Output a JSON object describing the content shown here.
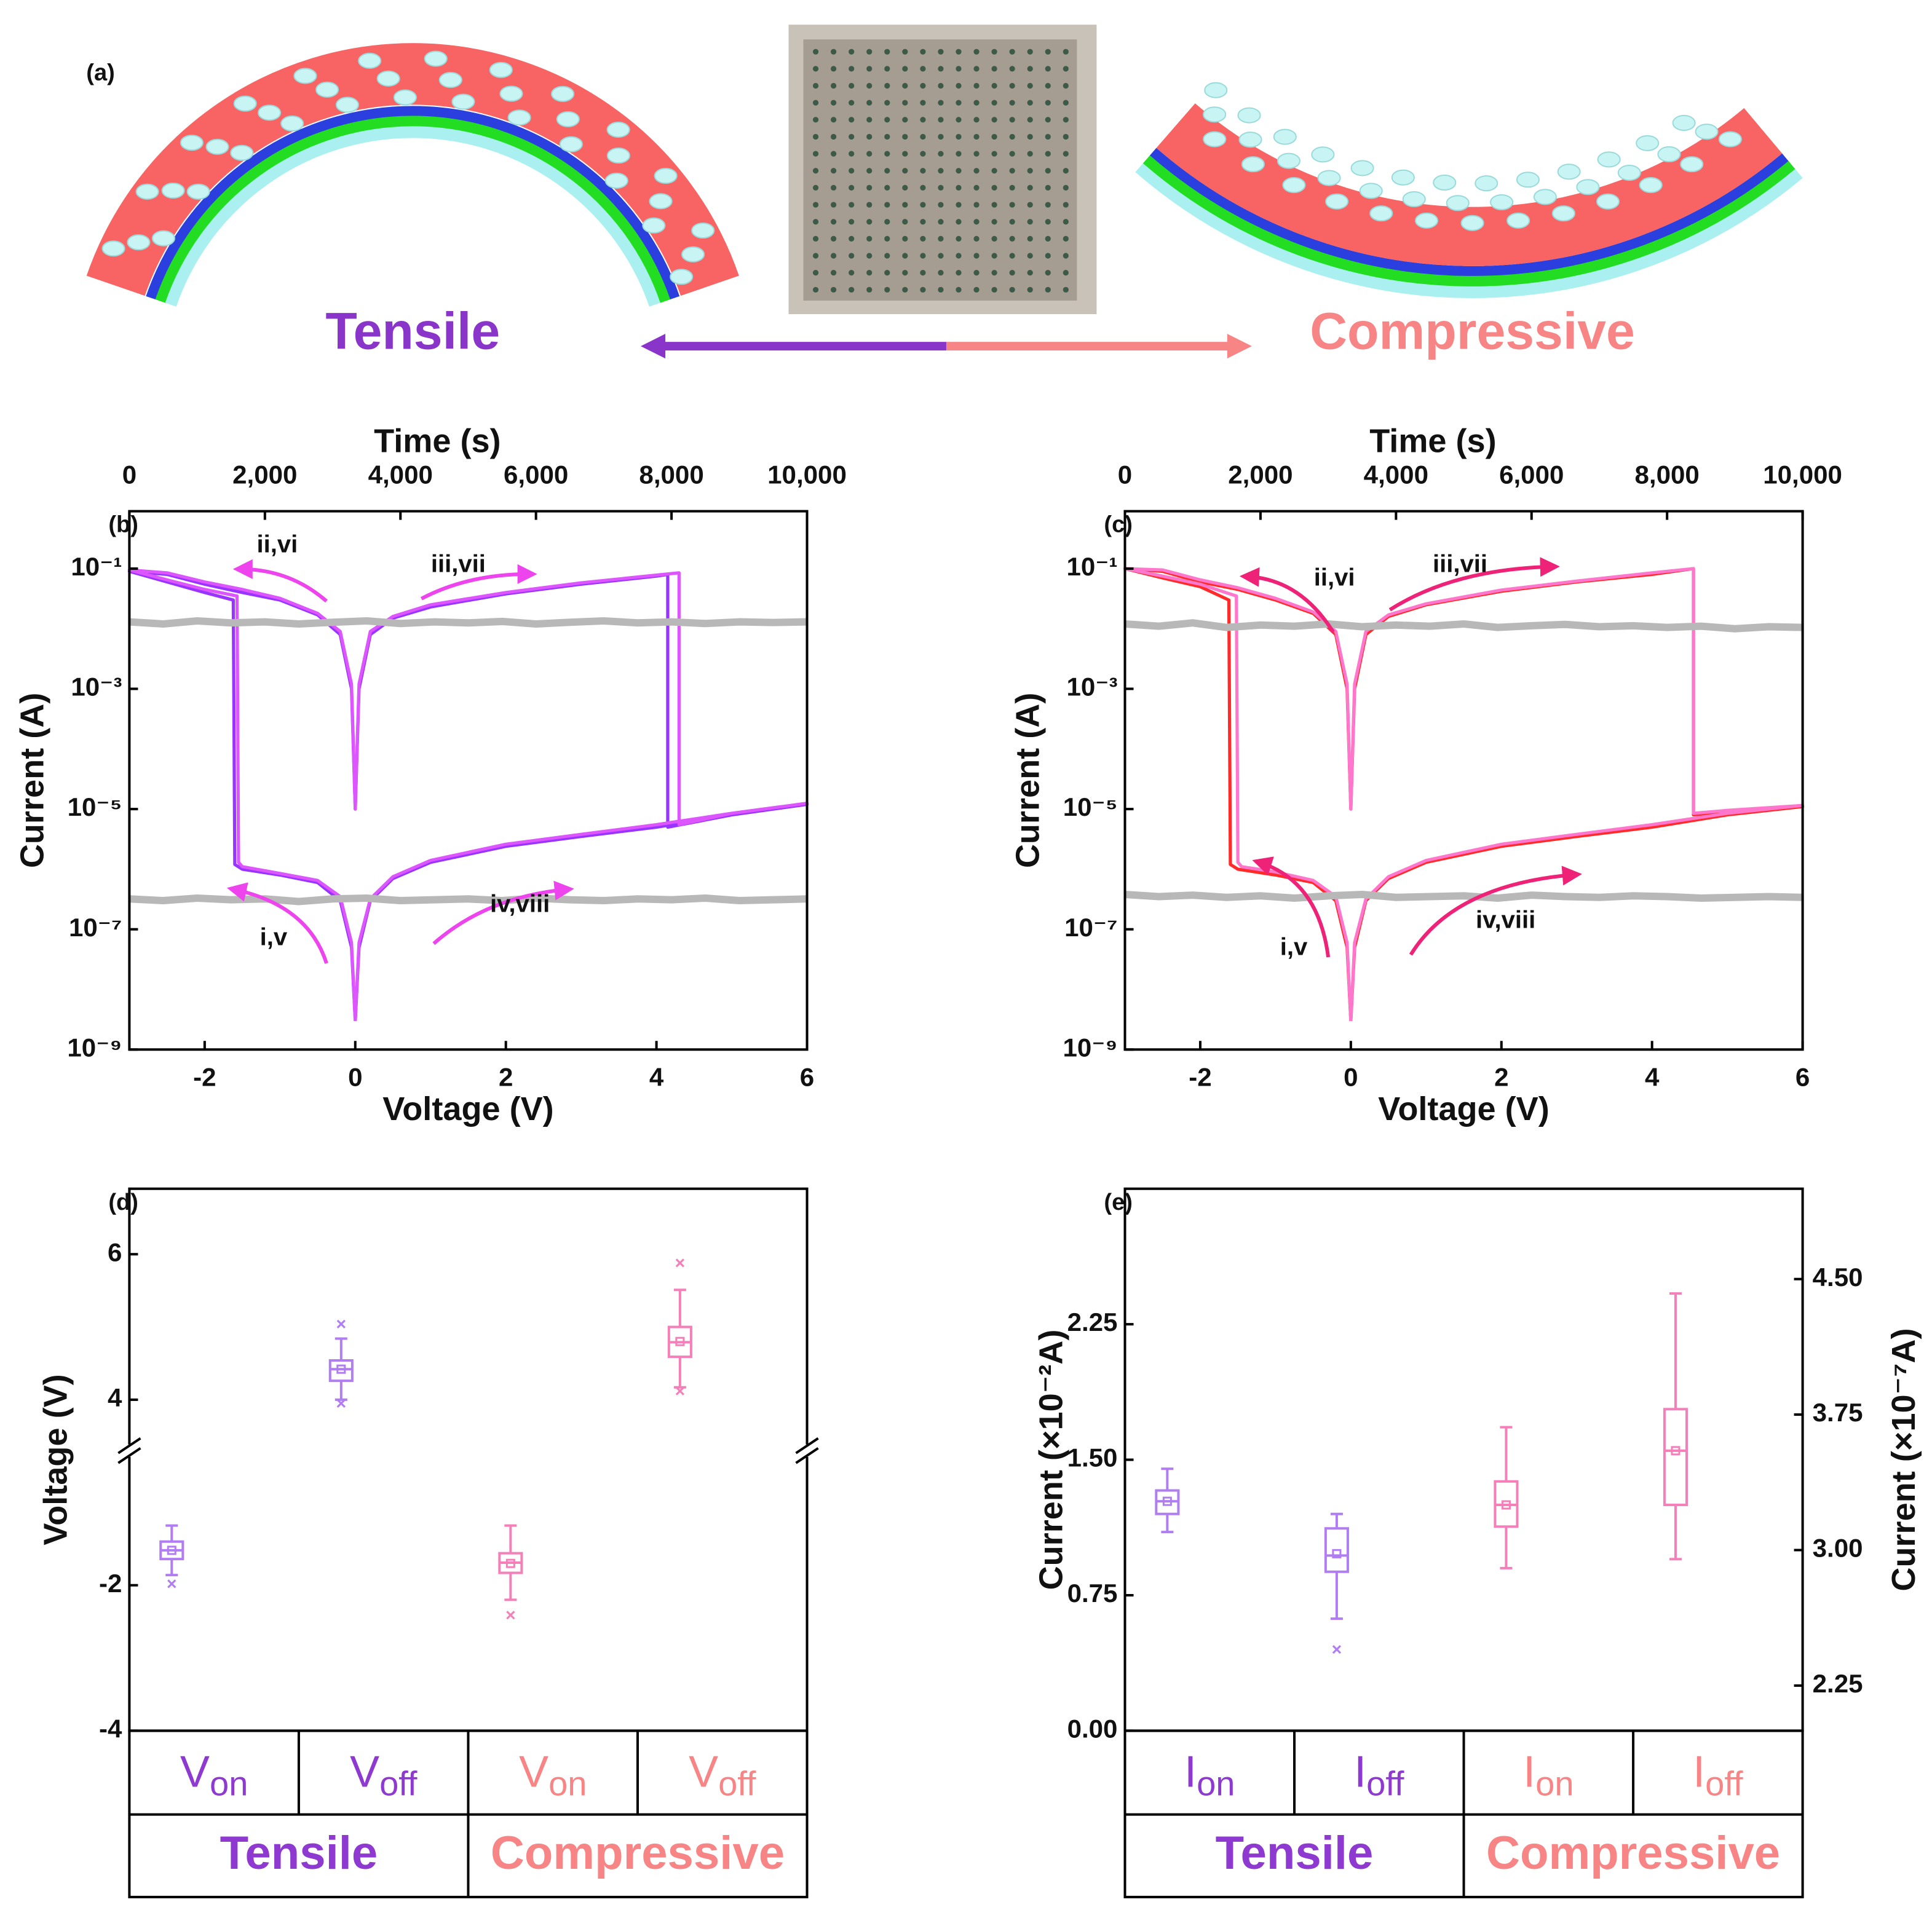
{
  "illustration": {
    "label": "(a)",
    "left_label": "Tensile",
    "right_label": "Compressive",
    "left_color": "#8a35c9",
    "right_color": "#f78585"
  },
  "chart_data": [
    {
      "type": "line",
      "panel_label": "(b)",
      "x_label": "Voltage (V)",
      "y_label": "Current (A)",
      "x2_label": "Time (s)",
      "xlim": [
        -3,
        6
      ],
      "xticks": [
        -2,
        0,
        2,
        4,
        6
      ],
      "x2lim": [
        0,
        10000
      ],
      "x2ticks": [
        0,
        {
          "value": 2000,
          "label": "2,000"
        },
        {
          "value": 4000,
          "label": "4,000"
        },
        {
          "value": 6000,
          "label": "6,000"
        },
        {
          "value": 8000,
          "label": "8,000"
        },
        {
          "value": 10000,
          "label": "10,000"
        }
      ],
      "ylim": [
        1e-09,
        0.9
      ],
      "log_y": true,
      "yticks": [
        {
          "value": 1e-09,
          "label": "10⁻⁹"
        },
        {
          "value": 1e-07,
          "label": "10⁻⁷"
        },
        {
          "value": 1e-05,
          "label": "10⁻⁵"
        },
        {
          "value": 0.001,
          "label": "10⁻³"
        },
        {
          "value": 0.1,
          "label": "10⁻¹"
        }
      ],
      "annotations": [
        "ii,vi",
        "iii,vii",
        "i,v",
        "iv,viii"
      ],
      "arrow_color": "#ee44ee",
      "series": [
        {
          "color": "#9933ff",
          "x": [
            0,
            -0.05,
            -0.2,
            -0.5,
            -1,
            -1.5,
            -1.6,
            -1.62,
            -2,
            -2.5,
            -3,
            -2.5,
            -2,
            -1.5,
            -1,
            -0.5,
            -0.2,
            -0.05,
            0,
            0.05,
            0.2,
            0.5,
            1,
            2,
            3,
            4,
            4.15,
            4.15,
            5,
            6,
            5,
            4,
            3,
            2,
            1,
            0.5,
            0.2,
            0.05,
            0
          ],
          "values": [
            3e-09,
            5e-08,
            3e-07,
            6e-07,
            8e-07,
            1e-06,
            1.2e-06,
            0.03,
            0.04,
            0.06,
            0.09,
            0.08,
            0.055,
            0.04,
            0.03,
            0.017,
            0.008,
            0.001,
            1e-05,
            0.001,
            0.008,
            0.015,
            0.023,
            0.038,
            0.055,
            0.075,
            0.08,
            5e-06,
            8e-06,
            1.2e-05,
            8e-06,
            5e-06,
            3.5e-06,
            2.4e-06,
            1.3e-06,
            7e-07,
            3e-07,
            5e-08,
            3e-09
          ]
        },
        {
          "color": "#dd55ff",
          "x": [
            0,
            -0.05,
            -0.2,
            -0.5,
            -1,
            -1.5,
            -1.55,
            -1.57,
            -2,
            -2.5,
            -3,
            -2.5,
            -2,
            -1.5,
            -1,
            -0.5,
            -0.2,
            -0.05,
            0,
            0.05,
            0.2,
            0.5,
            1,
            2,
            3,
            4,
            4.3,
            4.3,
            5,
            6,
            5,
            4,
            3,
            2,
            1,
            0.5,
            0.2,
            0.05,
            0
          ],
          "values": [
            3e-09,
            6e-08,
            3.5e-07,
            6.5e-07,
            8.5e-07,
            1.1e-06,
            1.3e-06,
            0.035,
            0.045,
            0.065,
            0.095,
            0.085,
            0.06,
            0.045,
            0.032,
            0.018,
            0.009,
            0.0012,
            1e-05,
            0.0012,
            0.009,
            0.016,
            0.025,
            0.04,
            0.058,
            0.078,
            0.085,
            5.5e-06,
            8.5e-06,
            1.25e-05,
            8.5e-06,
            5.5e-06,
            3.8e-06,
            2.6e-06,
            1.4e-06,
            7.5e-07,
            3.2e-07,
            6e-08,
            3e-09
          ]
        },
        {
          "color": "#b8b8b8",
          "axis": "x2",
          "x": [
            0,
            500,
            1000,
            1500,
            2000,
            2500,
            3000,
            3500,
            4000,
            4500,
            5000,
            5500,
            6000,
            6500,
            7000,
            7500,
            8000,
            8500,
            9000,
            9500,
            10000
          ],
          "values": [
            0.013,
            0.012,
            0.0135,
            0.0125,
            0.013,
            0.012,
            0.0128,
            0.0135,
            0.0122,
            0.013,
            0.0125,
            0.0132,
            0.012,
            0.0128,
            0.0135,
            0.0125,
            0.013,
            0.0122,
            0.013,
            0.0127,
            0.013
          ]
        },
        {
          "color": "#b8b8b8",
          "axis": "x2",
          "x": [
            0,
            500,
            1000,
            1500,
            2000,
            2500,
            3000,
            3500,
            4000,
            4500,
            5000,
            5500,
            6000,
            6500,
            7000,
            7500,
            8000,
            8500,
            9000,
            9500,
            10000
          ],
          "values": [
            3.2e-07,
            3e-07,
            3.3e-07,
            3.1e-07,
            3.2e-07,
            2.9e-07,
            3.2e-07,
            3.3e-07,
            3e-07,
            3.1e-07,
            3.2e-07,
            3e-07,
            3.3e-07,
            3.1e-07,
            3e-07,
            3.2e-07,
            3.1e-07,
            3.3e-07,
            3e-07,
            3.1e-07,
            3.2e-07
          ]
        }
      ]
    },
    {
      "type": "line",
      "panel_label": "(c)",
      "x_label": "Voltage (V)",
      "y_label": "Current (A)",
      "x2_label": "Time (s)",
      "xlim": [
        -3,
        6
      ],
      "xticks": [
        -2,
        0,
        2,
        4,
        6
      ],
      "x2lim": [
        0,
        10000
      ],
      "x2ticks": [
        0,
        {
          "value": 2000,
          "label": "2,000"
        },
        {
          "value": 4000,
          "label": "4,000"
        },
        {
          "value": 6000,
          "label": "6,000"
        },
        {
          "value": 8000,
          "label": "8,000"
        },
        {
          "value": 10000,
          "label": "10,000"
        }
      ],
      "ylim": [
        1e-09,
        0.9
      ],
      "log_y": true,
      "yticks": [
        {
          "value": 1e-09,
          "label": "10⁻⁹"
        },
        {
          "value": 1e-07,
          "label": "10⁻⁷"
        },
        {
          "value": 1e-05,
          "label": "10⁻⁵"
        },
        {
          "value": 0.001,
          "label": "10⁻³"
        },
        {
          "value": 0.1,
          "label": "10⁻¹"
        }
      ],
      "annotations": [
        "ii,vi",
        "iii,vii",
        "i,v",
        "iv,viii"
      ],
      "arrow_color": "#ee2277",
      "series": [
        {
          "color": "#ff2a2a",
          "x": [
            0,
            -0.05,
            -0.2,
            -0.5,
            -1,
            -1.5,
            -1.6,
            -1.62,
            -2,
            -2.5,
            -3,
            -2.5,
            -2,
            -1.5,
            -1,
            -0.5,
            -0.2,
            -0.05,
            0,
            0.05,
            0.2,
            0.5,
            1,
            2,
            3,
            4,
            4.55,
            4.55,
            5,
            6,
            5,
            4,
            3,
            2,
            1,
            0.5,
            0.2,
            0.05,
            0
          ],
          "values": [
            3e-09,
            5e-08,
            3e-07,
            6e-07,
            8e-07,
            1e-06,
            1.2e-06,
            0.03,
            0.05,
            0.07,
            0.1,
            0.09,
            0.06,
            0.045,
            0.03,
            0.018,
            0.008,
            0.001,
            1e-05,
            0.001,
            0.008,
            0.016,
            0.025,
            0.042,
            0.06,
            0.08,
            0.1,
            8e-06,
            9e-06,
            1.1e-05,
            8e-06,
            5e-06,
            3.5e-06,
            2.4e-06,
            1.3e-06,
            7e-07,
            3e-07,
            5e-08,
            3e-09
          ]
        },
        {
          "color": "#ff77cc",
          "x": [
            0,
            -0.05,
            -0.2,
            -0.5,
            -1,
            -1.45,
            -1.5,
            -1.52,
            -2,
            -2.5,
            -3,
            -2.5,
            -2,
            -1.5,
            -1,
            -0.5,
            -0.2,
            -0.05,
            0,
            0.05,
            0.2,
            0.5,
            1,
            2,
            3,
            4,
            4.55,
            4.55,
            5,
            6,
            5,
            4,
            3,
            2,
            1,
            0.5,
            0.2,
            0.05,
            0
          ],
          "values": [
            3e-09,
            6e-08,
            3.5e-07,
            6.5e-07,
            9e-07,
            1.1e-06,
            1.3e-06,
            0.035,
            0.055,
            0.075,
            0.1,
            0.095,
            0.065,
            0.048,
            0.032,
            0.019,
            0.009,
            0.0012,
            1e-05,
            0.0012,
            0.009,
            0.017,
            0.026,
            0.044,
            0.062,
            0.085,
            0.1,
            8.5e-06,
            9.5e-06,
            1.15e-05,
            8.5e-06,
            5.5e-06,
            3.8e-06,
            2.6e-06,
            1.4e-06,
            7.5e-07,
            3.2e-07,
            6e-08,
            3e-09
          ]
        },
        {
          "color": "#b8b8b8",
          "axis": "x2",
          "x": [
            0,
            500,
            1000,
            1500,
            2000,
            2500,
            3000,
            3500,
            4000,
            4500,
            5000,
            5500,
            6000,
            6500,
            7000,
            7500,
            8000,
            8500,
            9000,
            9500,
            10000
          ],
          "values": [
            0.012,
            0.011,
            0.0125,
            0.0105,
            0.0115,
            0.011,
            0.012,
            0.0108,
            0.0115,
            0.011,
            0.012,
            0.0105,
            0.0112,
            0.0118,
            0.0108,
            0.0112,
            0.0105,
            0.011,
            0.01,
            0.0108,
            0.0105
          ]
        },
        {
          "color": "#b8b8b8",
          "axis": "x2",
          "x": [
            0,
            500,
            1000,
            1500,
            2000,
            2500,
            3000,
            3500,
            4000,
            4500,
            5000,
            5500,
            6000,
            6500,
            7000,
            7500,
            8000,
            8500,
            9000,
            9500,
            10000
          ],
          "values": [
            3.8e-07,
            3.5e-07,
            3.7e-07,
            3.4e-07,
            3.6e-07,
            3.3e-07,
            3.6e-07,
            3.8e-07,
            3.4e-07,
            3.5e-07,
            3.6e-07,
            3.3e-07,
            3.7e-07,
            3.5e-07,
            3.4e-07,
            3.6e-07,
            3.5e-07,
            3.3e-07,
            3.4e-07,
            3.5e-07,
            3.4e-07
          ]
        }
      ]
    },
    {
      "type": "box",
      "panel_label": "(d)",
      "y_label": "Voltage (V)",
      "ylim": [
        -4,
        6.9
      ],
      "y_break": [
        -0.15,
        3.3
      ],
      "yticks": [
        -4,
        -2,
        4,
        6
      ],
      "series": [
        {
          "name": "Tensile",
          "color": "#b07df2",
          "label_color": "#8e3ad0",
          "categories": [
            {
              "symbol": "V",
              "subscript": "on"
            },
            {
              "symbol": "V",
              "subscript": "off"
            }
          ],
          "boxes": [
            {
              "min": -1.86,
              "q1": -1.64,
              "median": -1.52,
              "q3": -1.4,
              "max": -1.18,
              "mean": -1.52,
              "outliers": [
                -1.98
              ]
            },
            {
              "min": 4.0,
              "q1": 4.26,
              "median": 4.42,
              "q3": 4.54,
              "max": 4.84,
              "mean": 4.42,
              "outliers": [
                3.95,
                5.04
              ]
            }
          ]
        },
        {
          "name": "Compressive",
          "color": "#f57fb8",
          "label_color": "#f78585",
          "categories": [
            {
              "symbol": "V",
              "subscript": "on"
            },
            {
              "symbol": "V",
              "subscript": "off"
            }
          ],
          "boxes": [
            {
              "min": -2.2,
              "q1": -1.83,
              "median": -1.69,
              "q3": -1.56,
              "max": -1.18,
              "mean": -1.7,
              "outliers": [
                -2.41
              ]
            },
            {
              "min": 4.17,
              "q1": 4.59,
              "median": 4.79,
              "q3": 5.0,
              "max": 5.51,
              "mean": 4.8,
              "outliers": [
                4.12,
                5.88
              ]
            }
          ]
        }
      ]
    },
    {
      "type": "box",
      "panel_label": "(e)",
      "y_label": "Current (×10⁻²A)",
      "y2_label": "Current (×10⁻⁷A)",
      "ylim": [
        0,
        3.0
      ],
      "yticks": [
        {
          "value": 0,
          "label": "0.00"
        },
        {
          "value": 0.75,
          "label": "0.75"
        },
        {
          "value": 1.5,
          "label": "1.50"
        },
        {
          "value": 2.25,
          "label": "2.25"
        }
      ],
      "y2lim": [
        2.0,
        5.0
      ],
      "y2ticks": [
        {
          "value": 2.25,
          "label": "2.25"
        },
        {
          "value": 3,
          "label": "3.00"
        },
        {
          "value": 3.75,
          "label": "3.75"
        },
        {
          "value": 4.5,
          "label": "4.50"
        }
      ],
      "series": [
        {
          "name": "Tensile",
          "color": "#b07df2",
          "label_color": "#8e3ad0",
          "categories": [
            {
              "symbol": "I",
              "subscript": "on"
            },
            {
              "symbol": "I",
              "subscript": "off"
            }
          ],
          "boxes": [
            {
              "min": 1.1,
              "q1": 1.2,
              "median": 1.27,
              "q3": 1.33,
              "max": 1.45,
              "mean": 1.27,
              "outliers": []
            },
            {
              "axis": "y2",
              "min": 2.62,
              "q1": 2.88,
              "median": 2.97,
              "q3": 3.12,
              "max": 3.2,
              "mean": 2.98,
              "outliers": [
                2.45
              ]
            }
          ]
        },
        {
          "name": "Compressive",
          "color": "#f57fb8",
          "label_color": "#f78585",
          "categories": [
            {
              "symbol": "I",
              "subscript": "on"
            },
            {
              "symbol": "I",
              "subscript": "off"
            }
          ],
          "boxes": [
            {
              "min": 0.9,
              "q1": 1.13,
              "median": 1.25,
              "q3": 1.38,
              "max": 1.68,
              "mean": 1.25,
              "outliers": []
            },
            {
              "axis": "y2",
              "min": 2.95,
              "q1": 3.25,
              "median": 3.55,
              "q3": 3.78,
              "max": 4.42,
              "mean": 3.55,
              "outliers": []
            }
          ]
        }
      ]
    }
  ]
}
